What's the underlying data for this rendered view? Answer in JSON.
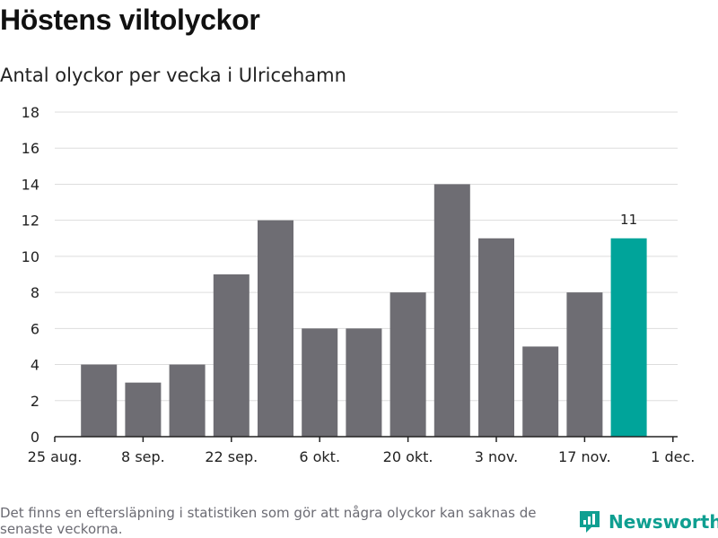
{
  "title": "Höstens viltolyckor",
  "subtitle": "Antal olyckor per vecka i Ulricehamn",
  "footer_note": "Det finns en eftersläpning i statistiken som gör att några olyckor kan saknas de senaste veckorna.",
  "brand": {
    "name": "Newsworthy",
    "icon": "newsworthy-logo-icon"
  },
  "colors": {
    "bar": "#6e6d73",
    "highlight": "#00a49a",
    "grid": "#dddddd",
    "axis": "#222222"
  },
  "chart_data": {
    "type": "bar",
    "title": "Höstens viltolyckor",
    "subtitle": "Antal olyckor per vecka i Ulricehamn",
    "xlabel": "",
    "ylabel": "",
    "ylim": [
      0,
      18
    ],
    "yticks": [
      0,
      2,
      4,
      6,
      8,
      10,
      12,
      14,
      16,
      18
    ],
    "xtick_labels": [
      "25 aug.",
      "8 sep.",
      "22 sep.",
      "6 okt.",
      "20 okt.",
      "3 nov.",
      "17 nov.",
      "1 dec."
    ],
    "values": [
      4,
      3,
      4,
      9,
      12,
      6,
      6,
      8,
      14,
      11,
      5,
      8,
      11
    ],
    "highlight_index": 12,
    "highlight_label": "11",
    "grid": true
  }
}
